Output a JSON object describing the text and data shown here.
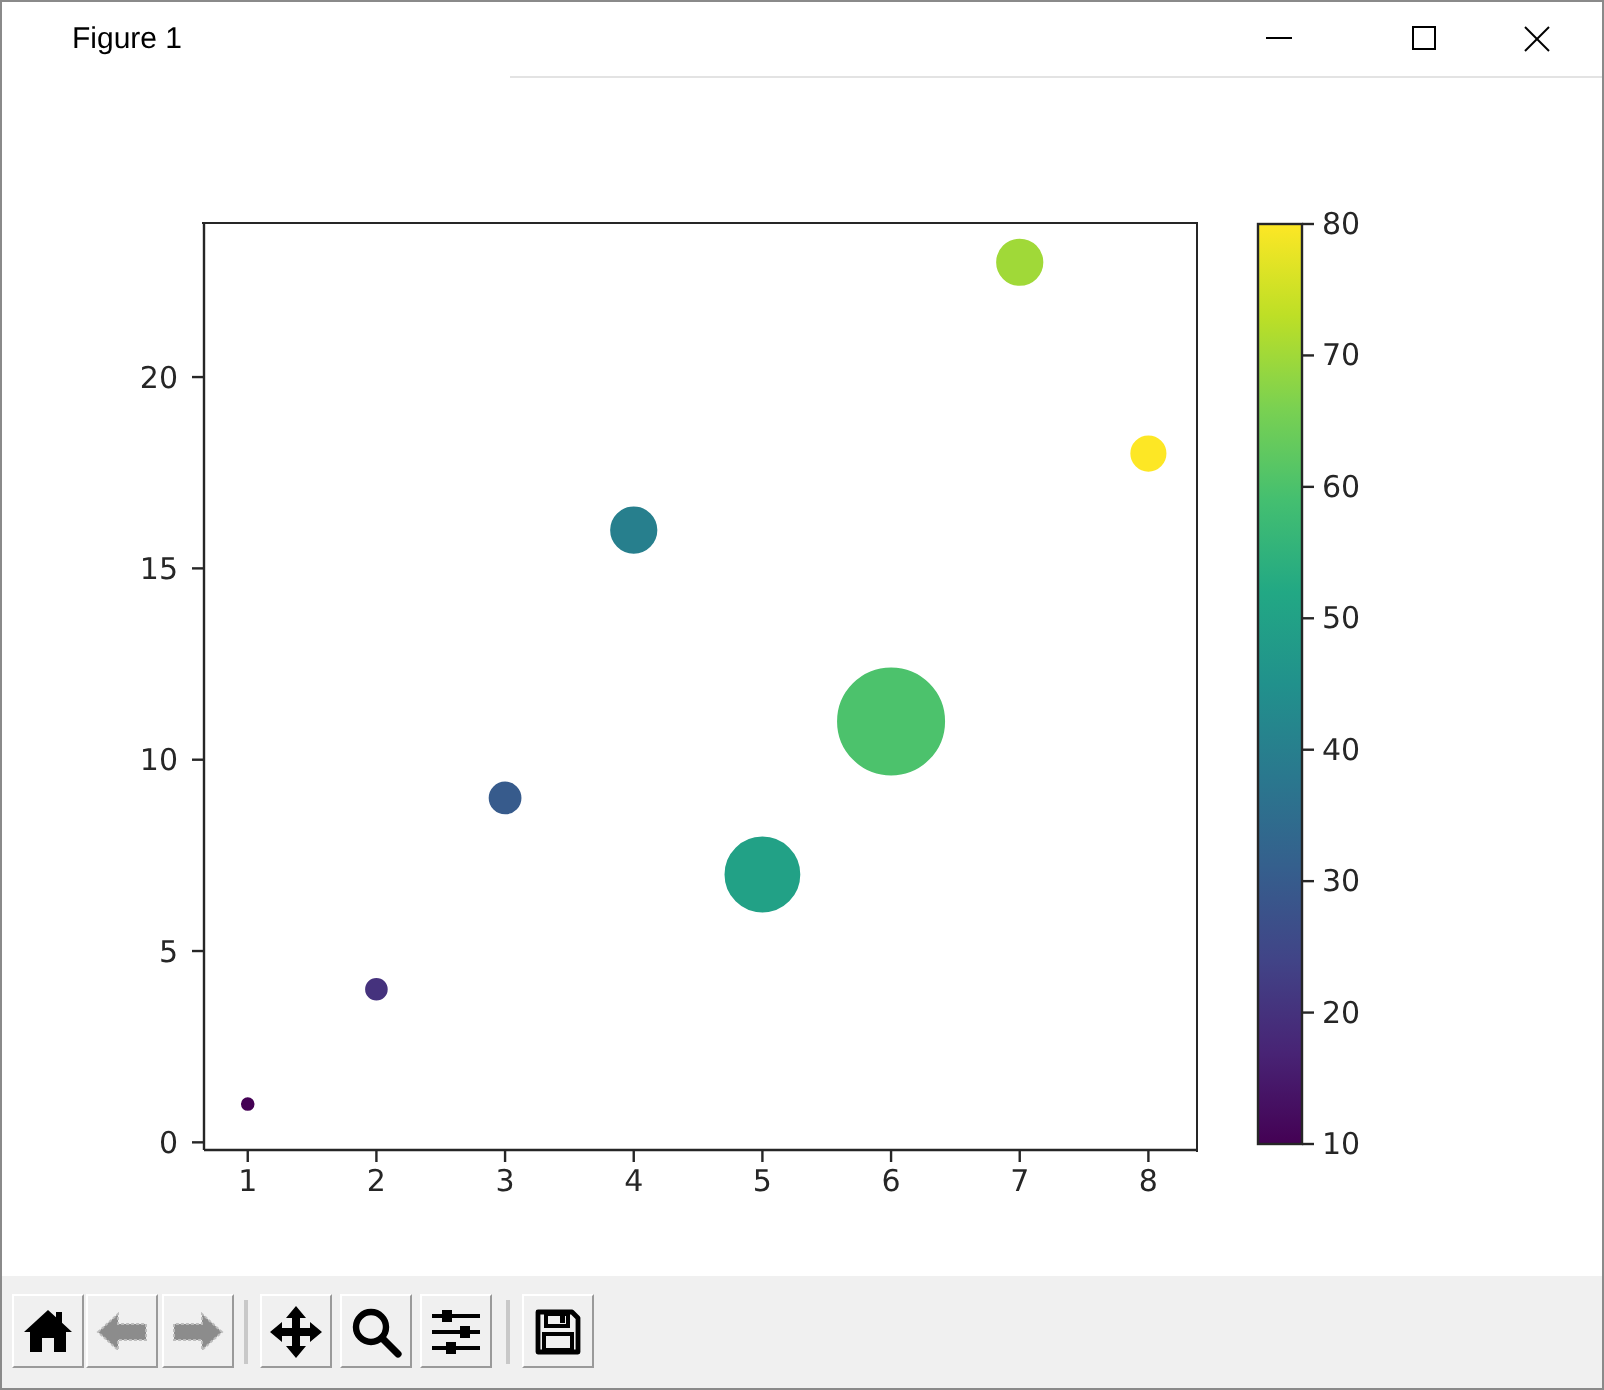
{
  "chart_data": {
    "type": "bubble",
    "x": [
      1,
      2,
      3,
      4,
      5,
      6,
      7,
      8
    ],
    "values": [
      1,
      4,
      9,
      16,
      7,
      11,
      23,
      18
    ],
    "sizes": [
      0.02,
      0.05,
      0.1,
      0.2,
      0.5,
      1,
      0.2,
      0.12
    ],
    "cvalues": [
      10,
      20,
      30,
      40,
      50,
      60,
      70,
      80
    ],
    "clim": [
      10,
      80
    ],
    "cticks": [
      10,
      20,
      30,
      40,
      50,
      60,
      70,
      80
    ],
    "xlim": [
      0.66,
      8.37
    ],
    "ylim": [
      -0.2,
      24.0
    ],
    "xticks": [
      1,
      2,
      3,
      4,
      5,
      6,
      7,
      8
    ],
    "yticks": [
      0,
      5,
      10,
      15,
      20
    ],
    "marker": "circle",
    "annotations": [
      "Figure 1"
    ]
  }
}
